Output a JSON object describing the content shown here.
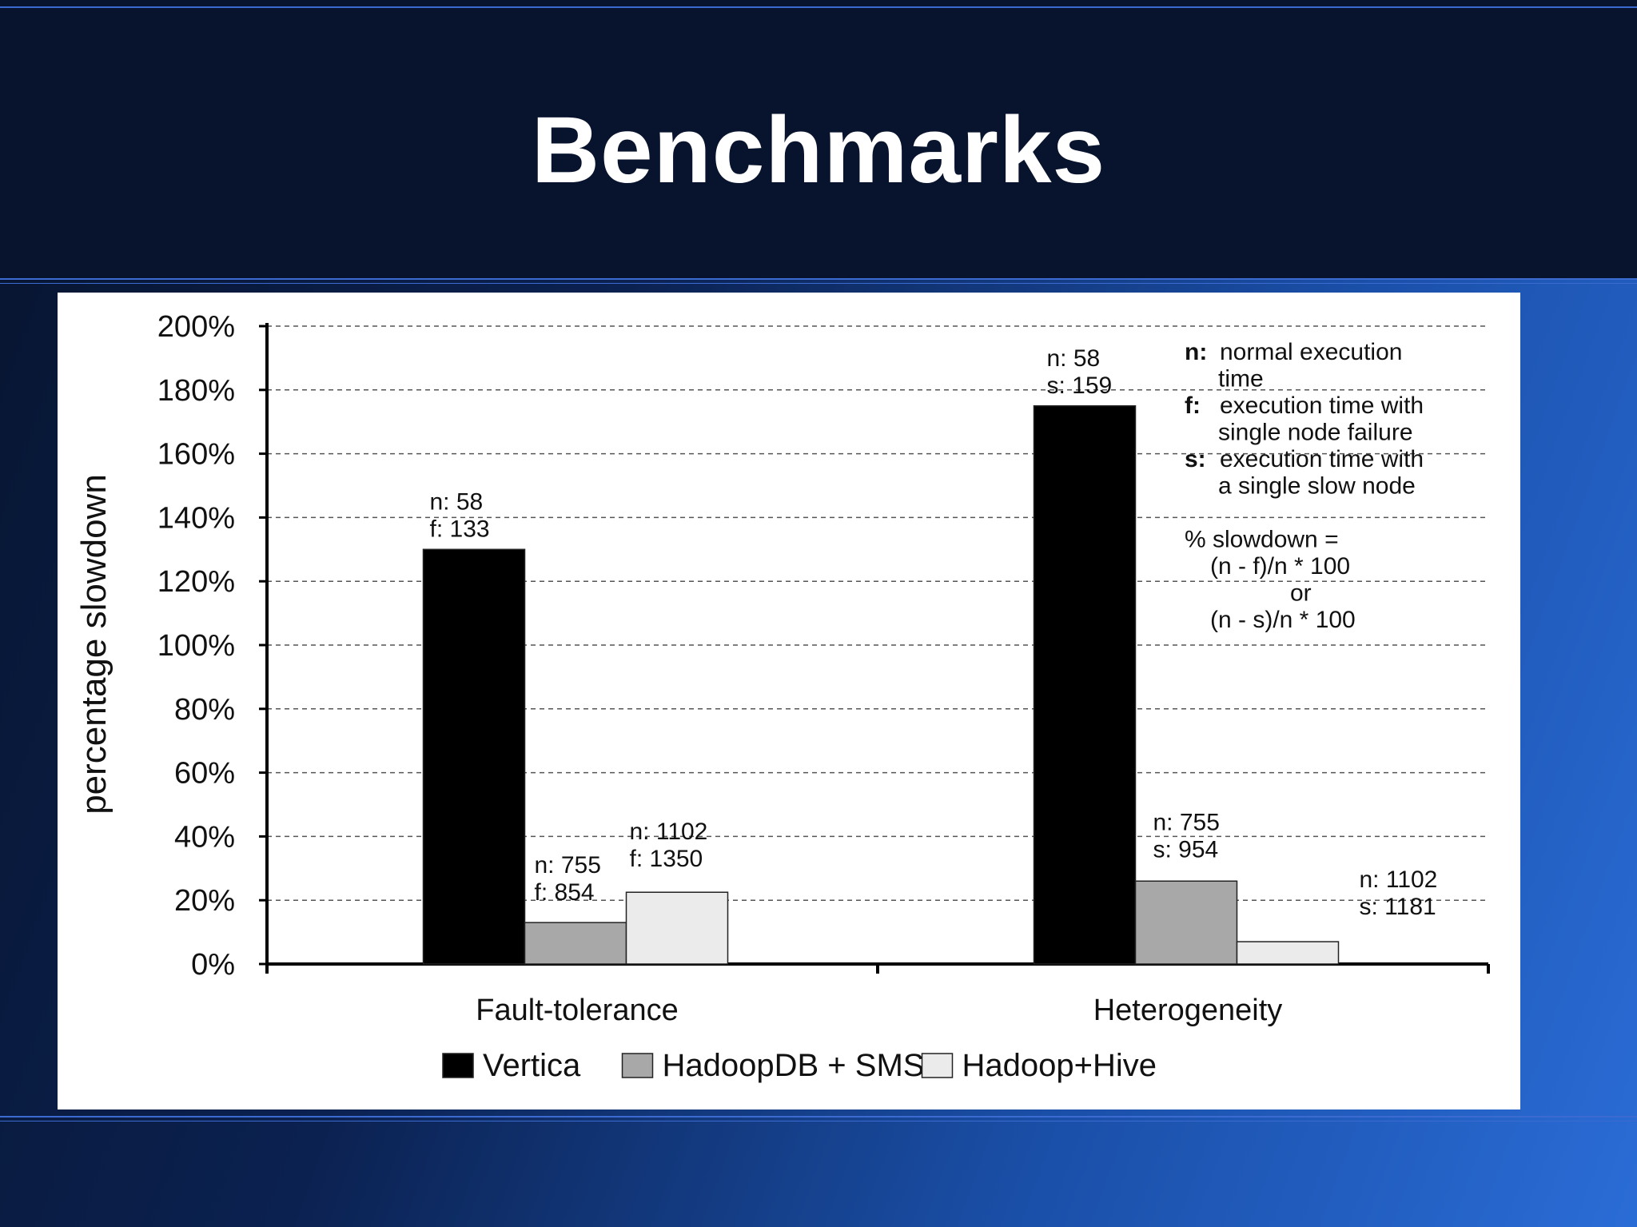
{
  "slide": {
    "title": "Benchmarks"
  },
  "chart_data": {
    "type": "bar",
    "ylabel": "percentage slowdown",
    "ylim": [
      0,
      200
    ],
    "yticks": [
      "0%",
      "20%",
      "40%",
      "60%",
      "80%",
      "100%",
      "120%",
      "140%",
      "160%",
      "180%",
      "200%"
    ],
    "grid": true,
    "categories": [
      "Fault-tolerance",
      "Heterogeneity"
    ],
    "series": [
      {
        "name": "Vertica",
        "color": "#000000",
        "values": [
          130,
          175
        ],
        "labels": [
          [
            "n: 58",
            "f: 133"
          ],
          [
            "n: 58",
            "s: 159"
          ]
        ]
      },
      {
        "name": "HadoopDB + SMS",
        "color": "#a8a8a8",
        "values": [
          13,
          26
        ],
        "labels": [
          [
            "n: 755",
            "f: 854"
          ],
          [
            "n: 755",
            "s: 954"
          ]
        ]
      },
      {
        "name": "Hadoop+Hive",
        "color": "#ebebeb",
        "values": [
          22.5,
          7
        ],
        "labels": [
          [
            "n: 1102",
            "f: 1350"
          ],
          [
            "n: 1102",
            "s: 1181"
          ]
        ]
      }
    ],
    "legend_position": "bottom",
    "annotation": {
      "n_key": "n:",
      "n_text": [
        "normal execution",
        "time"
      ],
      "f_key": "f:",
      "f_text": [
        "execution time with",
        "single node failure"
      ],
      "s_key": "s:",
      "s_text": [
        "execution time with",
        "a single slow node"
      ],
      "formula": [
        "% slowdown =",
        "(n - f)/n * 100",
        "or",
        "(n - s)/n * 100"
      ]
    }
  }
}
